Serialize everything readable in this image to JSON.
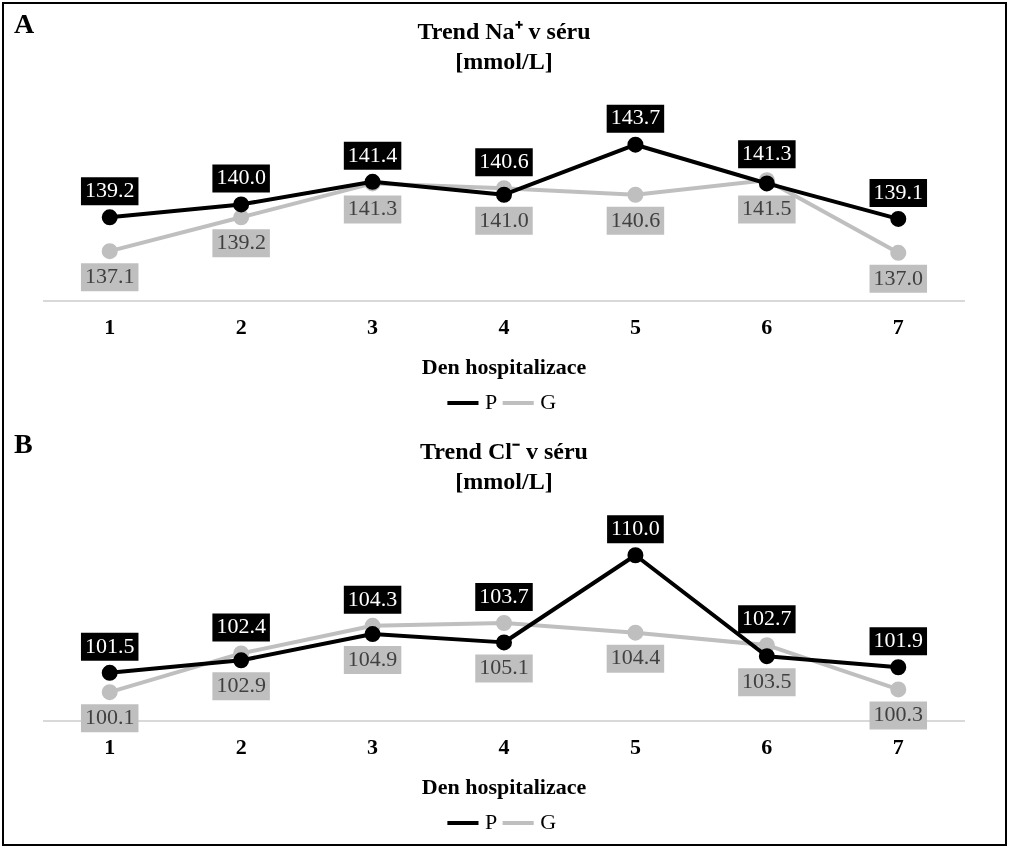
{
  "chart_data": [
    {
      "type": "line",
      "title": "Trend Na⁺ v séru",
      "subtitle": "[mmol/L]",
      "xlabel": "Den hospitalizace",
      "categories": [
        "1",
        "2",
        "3",
        "4",
        "5",
        "6",
        "7"
      ],
      "series": [
        {
          "name": "P",
          "color": "#000000",
          "values": [
            139.2,
            140.0,
            141.4,
            140.6,
            143.7,
            141.3,
            139.1
          ],
          "value_labels": [
            "139.2",
            "140.0",
            "141.4",
            "140.6",
            "143.7",
            "141.3",
            "139.1"
          ]
        },
        {
          "name": "G",
          "color": "#bfbfbf",
          "values": [
            137.1,
            139.2,
            141.3,
            141.0,
            140.6,
            141.5,
            137.0
          ],
          "value_labels": [
            "137.1",
            "139.2",
            "141.3",
            "141.0",
            "140.6",
            "141.5",
            "137.0"
          ]
        }
      ],
      "marker": "circle",
      "legend": "bottom",
      "grid": false,
      "tick_labels": "x",
      "annotations": [
        "A"
      ]
    },
    {
      "type": "line",
      "title": "Trend Cl⁻ v séru",
      "subtitle": "[mmol/L]",
      "xlabel": "Den hospitalizace",
      "categories": [
        "1",
        "2",
        "3",
        "4",
        "5",
        "6",
        "7"
      ],
      "series": [
        {
          "name": "P",
          "color": "#000000",
          "values": [
            101.5,
            102.4,
            104.3,
            103.7,
            110.0,
            102.7,
            101.9
          ],
          "value_labels": [
            "101.5",
            "102.4",
            "104.3",
            "103.7",
            "110.0",
            "102.7",
            "101.9"
          ]
        },
        {
          "name": "G",
          "color": "#bfbfbf",
          "values": [
            100.1,
            102.9,
            104.9,
            105.1,
            104.4,
            103.5,
            100.3
          ],
          "value_labels": [
            "100.1",
            "102.9",
            "104.9",
            "105.1",
            "104.4",
            "103.5",
            "100.3"
          ]
        }
      ],
      "marker": "circle",
      "legend": "bottom",
      "grid": false,
      "tick_labels": "x",
      "annotations": [
        "B"
      ]
    }
  ]
}
